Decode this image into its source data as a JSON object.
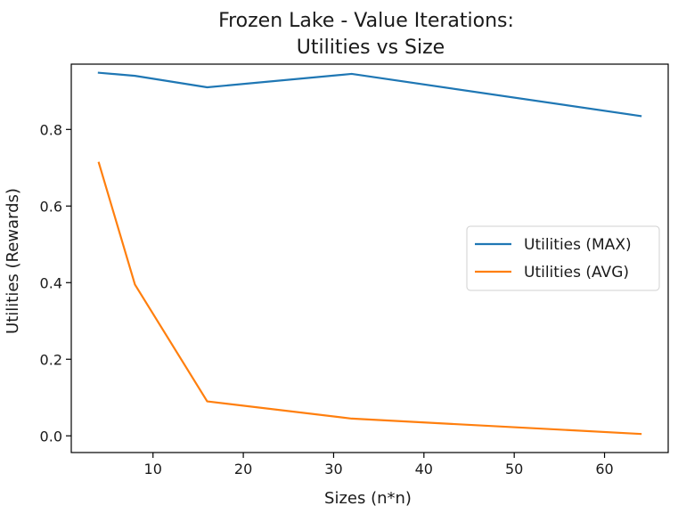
{
  "chart_data": {
    "type": "line",
    "title": "Frozen Lake - Value Iterations:",
    "subtitle": "Utilities vs Size",
    "xlabel": "Sizes (n*n)",
    "ylabel": "Utilities (Rewards)",
    "xlim": [
      0.95,
      67.05
    ],
    "ylim": [
      -0.0436,
      0.9705
    ],
    "xticks": [
      10,
      20,
      30,
      40,
      50,
      60
    ],
    "yticks": [
      0.0,
      0.2,
      0.4,
      0.6,
      0.8
    ],
    "ytick_labels": [
      "0.0",
      "0.2",
      "0.4",
      "0.6",
      "0.8"
    ],
    "grid": false,
    "legend_position": "center-right",
    "x": [
      4,
      8,
      16,
      32,
      64
    ],
    "series": [
      {
        "name": "Utilities (MAX)",
        "color": "#1f77b4",
        "values": [
          0.948,
          0.94,
          0.91,
          0.945,
          0.835
        ]
      },
      {
        "name": "Utilities (AVG)",
        "color": "#ff7f0e",
        "values": [
          0.713,
          0.395,
          0.09,
          0.045,
          0.005
        ]
      }
    ]
  }
}
